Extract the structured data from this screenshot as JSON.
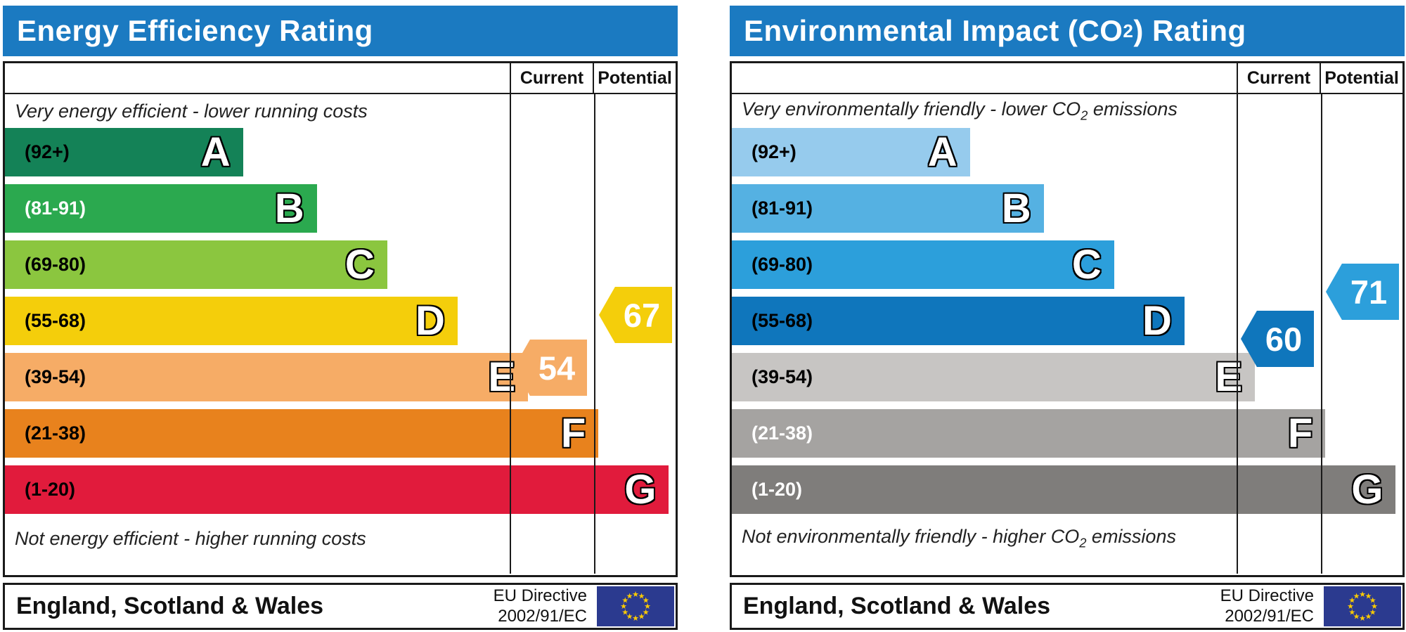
{
  "chart_data": [
    {
      "type": "bar",
      "title": "Energy Efficiency Rating",
      "categories": [
        "A (92+)",
        "B (81-91)",
        "C (69-80)",
        "D (55-68)",
        "E (39-54)",
        "F (21-38)",
        "G (1-20)"
      ],
      "values": [
        35.5,
        46.5,
        57,
        67.5,
        78,
        88.5,
        99
      ],
      "values_note": "bar lengths as % of scale width",
      "markers": {
        "current": 54,
        "potential": 67
      },
      "column_headers": [
        "Current",
        "Potential"
      ],
      "annotation_top": "Very energy efficient - lower running costs",
      "annotation_bottom": "Not energy efficient - higher running costs",
      "footer": "England, Scotland & Wales | EU Directive 2002/91/EC"
    },
    {
      "type": "bar",
      "title": "Environmental Impact (CO2) Rating",
      "categories": [
        "A (92+)",
        "B (81-91)",
        "C (69-80)",
        "D (55-68)",
        "E (39-54)",
        "F (21-38)",
        "G (1-20)"
      ],
      "values": [
        35.5,
        46.5,
        57,
        67.5,
        78,
        88.5,
        99
      ],
      "values_note": "bar lengths as % of scale width",
      "markers": {
        "current": 60,
        "potential": 71
      },
      "column_headers": [
        "Current",
        "Potential"
      ],
      "annotation_top": "Very environmentally friendly - lower CO2 emissions",
      "annotation_bottom": "Not environmentally friendly - higher CO2 emissions",
      "footer": "England, Scotland & Wales | EU Directive 2002/91/EC"
    }
  ],
  "left_panel": {
    "title": "Energy Efficiency Rating",
    "header": {
      "current": "Current",
      "potential": "Potential"
    },
    "caption_top": "Very energy efficient - lower running costs",
    "caption_bottom": "Not energy efficient - higher running costs",
    "bands": [
      {
        "letter": "A",
        "range": "(92+)",
        "min": 92,
        "max": 100,
        "color": "#148257",
        "label_color": "#000000",
        "width": "35.5%"
      },
      {
        "letter": "B",
        "range": "(81-91)",
        "min": 81,
        "max": 91,
        "color": "#2BA94F",
        "label_color": "#FFFFFF",
        "width": "46.5%"
      },
      {
        "letter": "C",
        "range": "(69-80)",
        "min": 69,
        "max": 80,
        "color": "#8BC63F",
        "label_color": "#000000",
        "width": "57%"
      },
      {
        "letter": "D",
        "range": "(55-68)",
        "min": 55,
        "max": 68,
        "color": "#F4CE0B",
        "label_color": "#000000",
        "width": "67.5%"
      },
      {
        "letter": "E",
        "range": "(39-54)",
        "min": 39,
        "max": 54,
        "color": "#F6AC66",
        "label_color": "#000000",
        "width": "78%"
      },
      {
        "letter": "F",
        "range": "(21-38)",
        "min": 21,
        "max": 38,
        "color": "#E8821D",
        "label_color": "#000000",
        "width": "88.5%"
      },
      {
        "letter": "G",
        "range": "(1-20)",
        "min": 1,
        "max": 20,
        "color": "#E11B3C",
        "label_color": "#000000",
        "width": "99%"
      }
    ],
    "current": {
      "value": "54",
      "color": "#F6AC66"
    },
    "potential": {
      "value": "67",
      "color": "#F4CE0B"
    },
    "footer": {
      "region": "England, Scotland & Wales",
      "directive_line1": "EU Directive",
      "directive_line2": "2002/91/EC"
    }
  },
  "right_panel": {
    "title_pre": "Environmental Impact (CO",
    "title_sub": "2",
    "title_post": ") Rating",
    "header": {
      "current": "Current",
      "potential": "Potential"
    },
    "caption_top_pre": "Very environmentally friendly - lower CO",
    "caption_top_sub": "2",
    "caption_top_post": " emissions",
    "caption_bottom_pre": "Not environmentally friendly - higher CO",
    "caption_bottom_sub": "2",
    "caption_bottom_post": " emissions",
    "bands": [
      {
        "letter": "A",
        "range": "(92+)",
        "min": 92,
        "max": 100,
        "color": "#96CBED",
        "label_color": "#000000",
        "width": "35.5%"
      },
      {
        "letter": "B",
        "range": "(81-91)",
        "min": 81,
        "max": 91,
        "color": "#55B1E2",
        "label_color": "#000000",
        "width": "46.5%"
      },
      {
        "letter": "C",
        "range": "(69-80)",
        "min": 69,
        "max": 80,
        "color": "#2C9FDB",
        "label_color": "#000000",
        "width": "57%"
      },
      {
        "letter": "D",
        "range": "(55-68)",
        "min": 55,
        "max": 68,
        "color": "#0F76BC",
        "label_color": "#000000",
        "width": "67.5%"
      },
      {
        "letter": "E",
        "range": "(39-54)",
        "min": 39,
        "max": 54,
        "color": "#C7C5C3",
        "label_color": "#000000",
        "width": "78%"
      },
      {
        "letter": "F",
        "range": "(21-38)",
        "min": 21,
        "max": 38,
        "color": "#A5A3A1",
        "label_color": "#FFFFFF",
        "width": "88.5%"
      },
      {
        "letter": "G",
        "range": "(1-20)",
        "min": 1,
        "max": 20,
        "color": "#7F7D7B",
        "label_color": "#FFFFFF",
        "width": "99%"
      }
    ],
    "current": {
      "value": "60",
      "color": "#0F76BC"
    },
    "potential": {
      "value": "71",
      "color": "#2C9FDB"
    },
    "footer": {
      "region": "England, Scotland & Wales",
      "directive_line1": "EU Directive",
      "directive_line2": "2002/91/EC"
    }
  }
}
